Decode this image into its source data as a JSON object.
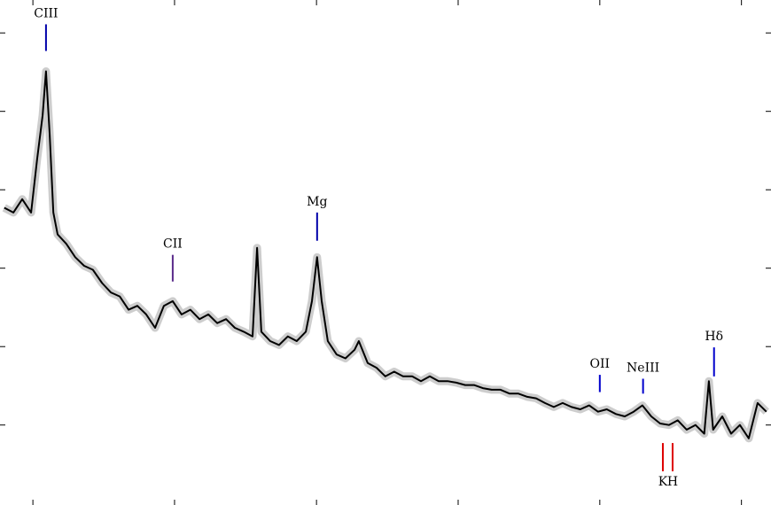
{
  "chart_data": {
    "type": "line",
    "color": "#000000",
    "noise_color": "#c0c0c0",
    "x": [
      1772,
      1802,
      1831,
      1860,
      1880,
      1898,
      1909,
      1921,
      1933,
      1947,
      1976,
      2005,
      2034,
      2063,
      2093,
      2122,
      2151,
      2180,
      2209,
      2238,
      2267,
      2296,
      2325,
      2354,
      2383,
      2413,
      2442,
      2471,
      2500,
      2529,
      2558,
      2587,
      2602,
      2616,
      2645,
      2674,
      2703,
      2732,
      2762,
      2782,
      2799,
      2814,
      2834,
      2863,
      2892,
      2922,
      2936,
      2965,
      2994,
      3023,
      3052,
      3081,
      3111,
      3140,
      3169,
      3198,
      3227,
      3256,
      3285,
      3314,
      3343,
      3372,
      3401,
      3431,
      3460,
      3489,
      3518,
      3547,
      3576,
      3605,
      3634,
      3663,
      3692,
      3721,
      3750,
      3780,
      3809,
      3838,
      3867,
      3896,
      3925,
      3954,
      3983,
      4012,
      4041,
      4070,
      4085,
      4099,
      4129,
      4158,
      4187,
      4216,
      4245,
      4274
    ],
    "values": [
      2.77,
      2.71,
      2.88,
      2.71,
      3.39,
      3.95,
      4.51,
      3.72,
      2.71,
      2.43,
      2.31,
      2.14,
      2.03,
      1.98,
      1.81,
      1.69,
      1.64,
      1.47,
      1.52,
      1.41,
      1.24,
      1.52,
      1.58,
      1.41,
      1.47,
      1.35,
      1.41,
      1.3,
      1.35,
      1.24,
      1.19,
      1.13,
      2.26,
      1.19,
      1.07,
      1.02,
      1.13,
      1.07,
      1.19,
      1.58,
      2.14,
      1.58,
      1.07,
      0.9,
      0.85,
      0.96,
      1.07,
      0.79,
      0.73,
      0.62,
      0.68,
      0.62,
      0.62,
      0.56,
      0.62,
      0.56,
      0.56,
      0.54,
      0.51,
      0.51,
      0.47,
      0.45,
      0.45,
      0.4,
      0.4,
      0.36,
      0.34,
      0.28,
      0.23,
      0.28,
      0.23,
      0.2,
      0.25,
      0.17,
      0.2,
      0.14,
      0.11,
      0.17,
      0.25,
      0.11,
      0.02,
      0.0,
      0.06,
      -0.06,
      0.0,
      -0.11,
      0.56,
      -0.06,
      0.11,
      -0.11,
      0.0,
      -0.17,
      0.28,
      0.17
    ],
    "xlim": [
      1758,
      4289
    ],
    "ylim": [
      -1.02,
      5.42
    ],
    "xticks": [
      1866,
      2331,
      2797,
      3262,
      3727,
      4192
    ],
    "yticks": [
      0,
      1,
      2,
      3,
      4,
      5
    ],
    "annotations": [
      {
        "label": "CIII",
        "x": 1909,
        "y": [
          5.11,
          4.77
        ],
        "color": "#0000aa",
        "position": "above"
      },
      {
        "label": "CII",
        "x": 2325,
        "y": [
          2.17,
          1.83
        ],
        "color": "#5a2a8a",
        "position": "above"
      },
      {
        "label": "Mg",
        "x": 2799,
        "y": [
          2.71,
          2.35
        ],
        "color": "#0000aa",
        "position": "above"
      },
      {
        "label": "OII",
        "x": 3727,
        "y": [
          0.64,
          0.42
        ],
        "color": "#0000cc",
        "position": "above"
      },
      {
        "label": "NeIII",
        "x": 3869,
        "y": [
          0.59,
          0.4
        ],
        "color": "#0000cc",
        "position": "above"
      },
      {
        "label": "Hδ",
        "x": 4102,
        "y": [
          0.99,
          0.62
        ],
        "color": "#0000cc",
        "position": "above"
      },
      {
        "label": "K",
        "x": 3934,
        "y": [
          -0.23,
          -0.59
        ],
        "color": "#dd0000",
        "position": "below"
      },
      {
        "label": "H",
        "x": 3966,
        "y": [
          -0.23,
          -0.59
        ],
        "color": "#dd0000",
        "position": "below"
      }
    ]
  }
}
